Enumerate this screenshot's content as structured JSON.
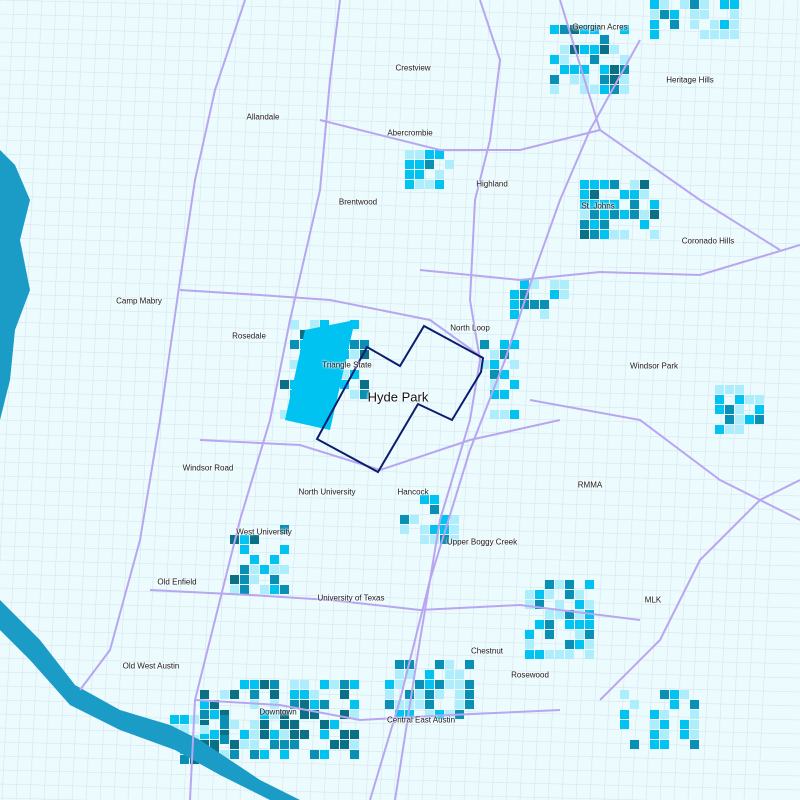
{
  "map": {
    "focus_neighborhood": "Hyde Park",
    "colors": {
      "background": "#ecfbfe",
      "density_low": "#aeeefc",
      "density_mid": "#00c3f2",
      "density_high": "#0a8fb5",
      "density_max": "#0b6f86",
      "water": "#1a9cc6",
      "roads": "#b8a6f0",
      "streets": "#d4e2ea",
      "focus_outline": "#0c1d6e"
    },
    "labels": [
      "Georgian Acres",
      "Heritage Hills",
      "Crestview",
      "Allandale",
      "Abercrombie",
      "Highland",
      "Brentwood",
      "St. Johns",
      "Coronado Hills",
      "Camp Mabry",
      "Rosedale",
      "North Loop",
      "Triangle State",
      "Hyde Park",
      "Windsor Park",
      "Windsor Road",
      "North University",
      "Hancock",
      "RMMA",
      "West University",
      "Upper Boggy Creek",
      "Old Enfield",
      "University of Texas",
      "MLK",
      "Chestnut",
      "Rosewood",
      "Old West Austin",
      "Downtown",
      "Central East Austin"
    ]
  }
}
